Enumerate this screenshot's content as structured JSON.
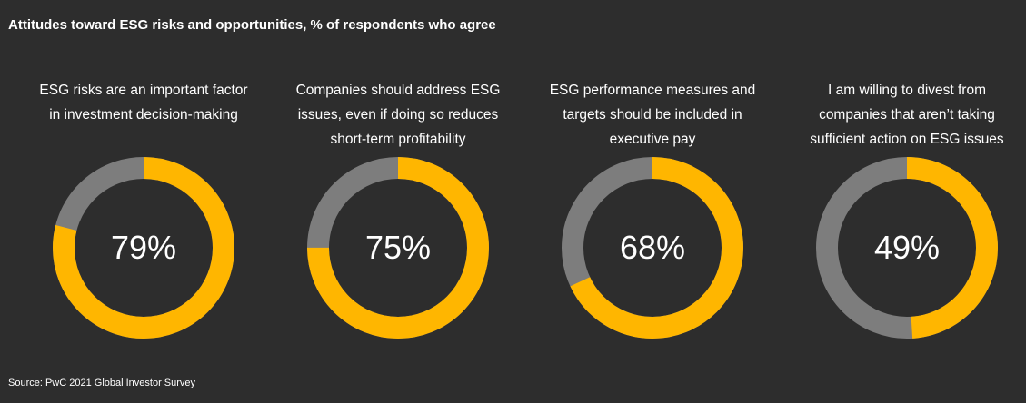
{
  "title": "Attitudes toward ESG risks and opportunities, % of respondents who agree",
  "source": "Source: PwC 2021 Global Investor Survey",
  "colors": {
    "background": "#2d2d2d",
    "agree": "#ffb600",
    "remainder": "#7d7d7d",
    "text": "#ffffff"
  },
  "chart_data": {
    "type": "pie",
    "variant": "donut",
    "title": "Attitudes toward ESG risks and opportunities, % of respondents who agree",
    "items": [
      {
        "label_lines": [
          "ESG risks are an important factor",
          "in investment decision-making"
        ],
        "value": 79,
        "display": "79%"
      },
      {
        "label_lines": [
          "Companies should address ESG",
          "issues, even if doing so reduces",
          "short-term profitability"
        ],
        "value": 75,
        "display": "75%"
      },
      {
        "label_lines": [
          "ESG performance measures and",
          "targets should be included in",
          "executive pay"
        ],
        "value": 68,
        "display": "68%"
      },
      {
        "label_lines": [
          "I am willing to divest from",
          "companies that aren’t taking",
          "sufficient action on ESG issues"
        ],
        "value": 49,
        "display": "49%"
      }
    ]
  }
}
